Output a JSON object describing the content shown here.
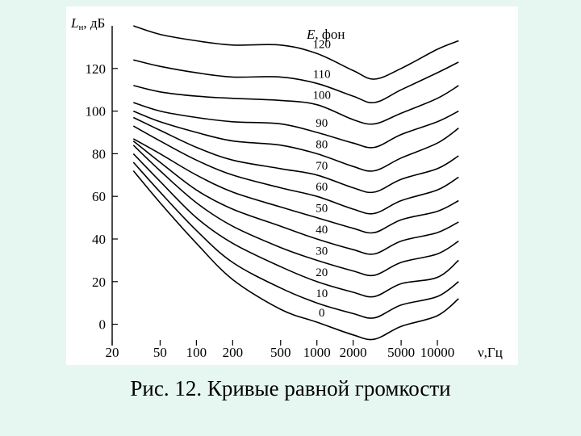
{
  "caption": "Рис. 12. Кривые равной громкости",
  "colors": {
    "background": "#e6f7f1",
    "panel": "#ffffff",
    "ink": "#000000"
  },
  "chart_data": {
    "type": "line",
    "ylabel_main": "L",
    "ylabel_sub": "н",
    "ylabel_unit": ", дБ",
    "xlabel": "ν,Гц",
    "legend_title_main": "E",
    "legend_title_unit": ", фон",
    "x_scale": "log",
    "xlim": [
      20,
      20000
    ],
    "ylim": [
      -10,
      140
    ],
    "x_ticks": [
      20,
      50,
      100,
      200,
      500,
      1000,
      2000,
      5000,
      10000
    ],
    "x_tick_labels": [
      "20",
      "50",
      "100",
      "200",
      "500",
      "1000",
      "2000",
      "5000",
      "10000"
    ],
    "y_ticks": [
      0,
      20,
      40,
      60,
      80,
      100,
      120
    ],
    "y_tick_labels": [
      "0",
      "20",
      "40",
      "60",
      "80",
      "100",
      "120"
    ],
    "grid": false,
    "x": [
      20,
      30,
      50,
      100,
      200,
      500,
      1000,
      2000,
      3000,
      5000,
      10000,
      15000
    ],
    "series": [
      {
        "name": "120",
        "values": [
          null,
          140,
          136,
          133,
          131,
          131,
          127,
          119,
          115,
          120,
          129,
          133
        ]
      },
      {
        "name": "110",
        "values": [
          null,
          124,
          121,
          118,
          116,
          116,
          113,
          107,
          104,
          110,
          118,
          123
        ]
      },
      {
        "name": "100",
        "values": [
          null,
          112,
          109,
          107,
          106,
          105,
          103,
          96,
          94,
          99,
          106,
          112
        ]
      },
      {
        "name": "90",
        "values": [
          null,
          104,
          100,
          97,
          95,
          94,
          90,
          85,
          83,
          89,
          95,
          100
        ]
      },
      {
        "name": "80",
        "values": [
          null,
          100,
          95,
          90,
          86,
          84,
          80,
          74,
          72,
          78,
          85,
          92
        ]
      },
      {
        "name": "70",
        "values": [
          null,
          97,
          91,
          83,
          77,
          73,
          70,
          64,
          62,
          68,
          73,
          79
        ]
      },
      {
        "name": "60",
        "values": [
          null,
          93,
          86,
          77,
          70,
          64,
          60,
          54,
          52,
          58,
          63,
          69
        ]
      },
      {
        "name": "50",
        "values": [
          null,
          87,
          80,
          70,
          62,
          55,
          50,
          45,
          43,
          49,
          53,
          58
        ]
      },
      {
        "name": "40",
        "values": [
          null,
          86,
          76,
          63,
          54,
          46,
          40,
          35,
          33,
          39,
          43,
          48
        ]
      },
      {
        "name": "30",
        "values": [
          null,
          84,
          72,
          57,
          46,
          36,
          30,
          25,
          23,
          29,
          33,
          39
        ]
      },
      {
        "name": "20",
        "values": [
          null,
          80,
          67,
          50,
          38,
          27,
          20,
          15,
          13,
          19,
          22,
          30
        ]
      },
      {
        "name": "10",
        "values": [
          null,
          76,
          62,
          44,
          29,
          17,
          10,
          5,
          3,
          9,
          13,
          20
        ]
      },
      {
        "name": "0",
        "values": [
          null,
          72,
          57,
          38,
          21,
          7,
          1,
          -5,
          -7,
          -1,
          4,
          12
        ]
      }
    ]
  }
}
